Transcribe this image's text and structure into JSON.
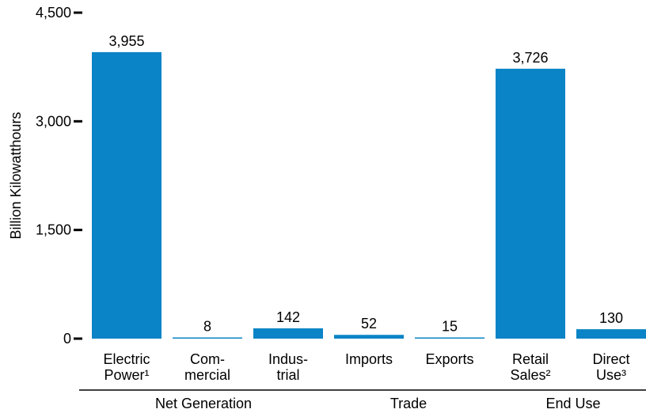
{
  "chart_data": {
    "type": "bar",
    "ylabel": "Billion Kilowatthours",
    "ylim": [
      0,
      4500
    ],
    "yticks": [
      "0",
      "1,500",
      "3,000",
      "4,500"
    ],
    "ytick_values": [
      0,
      1500,
      3000,
      4500
    ],
    "grid": false,
    "bar_color": "#0a84c6",
    "categories": [
      {
        "lines": [
          "Electric",
          "Power¹"
        ],
        "value": 3955,
        "label": "3,955",
        "group": 0
      },
      {
        "lines": [
          "Com-",
          "mercial"
        ],
        "value": 8,
        "label": "8",
        "group": 0
      },
      {
        "lines": [
          "Indus-",
          "trial"
        ],
        "value": 142,
        "label": "142",
        "group": 0
      },
      {
        "lines": [
          "Imports"
        ],
        "value": 52,
        "label": "52",
        "group": 1
      },
      {
        "lines": [
          "Exports"
        ],
        "value": 15,
        "label": "15",
        "group": 1
      },
      {
        "lines": [
          "Retail",
          "Sales²"
        ],
        "value": 3726,
        "label": "3,726",
        "group": 2
      },
      {
        "lines": [
          "Direct",
          "Use³"
        ],
        "value": 130,
        "label": "130",
        "group": 2
      }
    ],
    "groups": [
      "Net Generation",
      "Trade",
      "End Use"
    ]
  }
}
